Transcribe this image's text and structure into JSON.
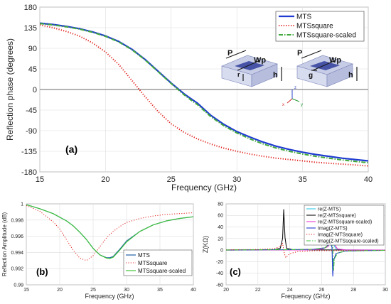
{
  "chart_data": [
    {
      "panel": "(a)",
      "type": "line",
      "xlabel": "Frequency (GHz)",
      "ylabel": "Reflection phase (degrees)",
      "xlim": [
        15,
        40
      ],
      "ylim": [
        -180,
        180
      ],
      "xticks": [
        15,
        20,
        25,
        30,
        35,
        40
      ],
      "yticks": [
        -180,
        -135,
        -90,
        -45,
        0,
        45,
        90,
        135,
        180
      ],
      "grid": true,
      "legend_position": "top-right",
      "series": [
        {
          "name": "MTS",
          "color": "#1f3bd1",
          "dash": "solid",
          "x": [
            15,
            16,
            17,
            18,
            19,
            20,
            21,
            22,
            23,
            24,
            25,
            26,
            26.5,
            27,
            28,
            29,
            30,
            31,
            32,
            33,
            34,
            35,
            36,
            37,
            38,
            39,
            40
          ],
          "y": [
            145,
            142,
            138,
            133,
            126,
            117,
            105,
            88,
            66,
            40,
            14,
            -10,
            -20,
            -30,
            -56,
            -76,
            -92,
            -104,
            -115,
            -124,
            -131,
            -137,
            -142,
            -146,
            -150,
            -153,
            -156
          ]
        },
        {
          "name": "MTSsquare",
          "color": "#e0201b",
          "dash": "dotted",
          "x": [
            15,
            16,
            17,
            18,
            19,
            20,
            21,
            22,
            23,
            24,
            25,
            26,
            27,
            28,
            29,
            30,
            31,
            32,
            33,
            34,
            35,
            36,
            37,
            38,
            39,
            40
          ],
          "y": [
            141,
            135,
            127,
            117,
            102,
            82,
            55,
            20,
            -15,
            -48,
            -75,
            -94,
            -108,
            -119,
            -128,
            -135,
            -141,
            -146,
            -150,
            -153,
            -156,
            -159,
            -161,
            -163,
            -165,
            -167
          ]
        },
        {
          "name": "MTSsquare-scaled",
          "color": "#41a83b",
          "dash": "dashdot",
          "x": [
            15,
            16,
            17,
            18,
            19,
            20,
            21,
            22,
            23,
            24,
            25,
            26,
            26.5,
            27,
            28,
            29,
            30,
            31,
            32,
            33,
            34,
            35,
            36,
            37,
            38,
            39,
            40
          ],
          "y": [
            144,
            141,
            137,
            132,
            125,
            116,
            104,
            87,
            65,
            39,
            13,
            -12,
            -23,
            -33,
            -59,
            -79,
            -95,
            -108,
            -119,
            -128,
            -135,
            -141,
            -146,
            -150,
            -154,
            -157,
            -160
          ]
        }
      ],
      "inset_labels": [
        "P",
        "Wp",
        "r",
        "h",
        "P",
        "Wp",
        "g",
        "h",
        "z",
        "x",
        "y"
      ]
    },
    {
      "panel": "(b)",
      "type": "line",
      "xlabel": "Frequency (GHz)",
      "ylabel": "Reflection Amplitude (dB)",
      "xlim": [
        15,
        40
      ],
      "ylim": [
        0.99,
        1
      ],
      "xticks": [
        15,
        20,
        25,
        30,
        35,
        40
      ],
      "yticks": [
        0.99,
        0.992,
        0.994,
        0.996,
        0.998,
        1
      ],
      "ytick_labels": [
        "0.99",
        "0.992",
        "0.994",
        "0.996",
        "0.998",
        "1"
      ],
      "grid": true,
      "legend_position": "bottom-right",
      "series": [
        {
          "name": "MTS",
          "color": "#1f5fa6",
          "dash": "solid",
          "x": [
            15,
            17,
            19,
            21,
            22,
            23,
            24,
            25,
            26,
            27,
            27.5,
            28,
            29,
            30,
            32,
            34,
            36,
            38,
            40
          ],
          "y": [
            0.9999,
            0.9994,
            0.9988,
            0.9979,
            0.9973,
            0.9965,
            0.9956,
            0.9945,
            0.9937,
            0.99335,
            0.99335,
            0.9935,
            0.9944,
            0.9954,
            0.9966,
            0.9974,
            0.9979,
            0.9982,
            0.9984
          ]
        },
        {
          "name": "MTSsquare",
          "color": "#e0201b",
          "dash": "dotted",
          "x": [
            15,
            17,
            19,
            20,
            21,
            22,
            23,
            24,
            25,
            26,
            27,
            28,
            29,
            30,
            32,
            34,
            36,
            38,
            40
          ],
          "y": [
            0.9998,
            0.9991,
            0.9978,
            0.9969,
            0.9956,
            0.9943,
            0.9933,
            0.993,
            0.9936,
            0.9947,
            0.9958,
            0.9966,
            0.9972,
            0.9977,
            0.9982,
            0.9985,
            0.9987,
            0.9988,
            0.9989
          ]
        },
        {
          "name": "MTSsquare-scaled",
          "color": "#41c43b",
          "dash": "solid",
          "x": [
            15,
            17,
            19,
            21,
            22,
            23,
            24,
            25,
            26,
            27,
            27.5,
            28,
            29,
            30,
            32,
            34,
            36,
            38,
            40
          ],
          "y": [
            0.9999,
            0.9994,
            0.9988,
            0.9979,
            0.9973,
            0.9965,
            0.9956,
            0.9945,
            0.9937,
            0.9933,
            0.99325,
            0.9934,
            0.9943,
            0.9953,
            0.9966,
            0.9974,
            0.9979,
            0.9982,
            0.9984
          ]
        }
      ]
    },
    {
      "panel": "(c)",
      "type": "line",
      "xlabel": "Frequency (GHz)",
      "ylabel": "Z(KΩ)",
      "xlim": [
        20,
        30
      ],
      "ylim": [
        -60,
        80
      ],
      "xticks": [
        20,
        22,
        24,
        26,
        28,
        30
      ],
      "yticks": [
        -60,
        -40,
        -20,
        0,
        20,
        40,
        60,
        80
      ],
      "grid": true,
      "legend_position": "top-right",
      "series": [
        {
          "name": "re(Z-MTS)",
          "color": "#2ec8e6",
          "dash": "solid",
          "x": [
            20,
            25,
            26,
            26.3,
            26.5,
            26.6,
            26.7,
            26.9,
            27.5,
            30
          ],
          "y": [
            0,
            0.3,
            1.5,
            5,
            15,
            18,
            12,
            2,
            0.4,
            0
          ]
        },
        {
          "name": "re(Z-MTSsquare)",
          "color": "#111111",
          "dash": "solid",
          "x": [
            20,
            23,
            23.4,
            23.55,
            23.62,
            23.7,
            23.8,
            24.2,
            30
          ],
          "y": [
            0,
            0.5,
            3,
            20,
            70,
            22,
            3,
            0.5,
            0
          ]
        },
        {
          "name": "re(Z-MTSsquare-scaled)",
          "color": "#e63ad1",
          "dash": "solid",
          "x": [
            20,
            25,
            26,
            26.4,
            26.6,
            26.7,
            26.8,
            27,
            27.5,
            30
          ],
          "y": [
            0,
            0.3,
            1.5,
            6,
            16,
            19,
            10,
            2,
            0.4,
            0
          ]
        },
        {
          "name": "Imag(Z-MTS)",
          "color": "#1f3bd1",
          "dash": "solid",
          "x": [
            20,
            24,
            25.5,
            26.2,
            26.55,
            26.65,
            26.7,
            26.75,
            26.9,
            27.5,
            30
          ],
          "y": [
            0.3,
            0.8,
            1.5,
            4,
            12,
            5,
            -45,
            -18,
            -6,
            -1.5,
            -0.3
          ]
        },
        {
          "name": "Imag(Z-MTSsquare)",
          "color": "#e0201b",
          "dash": "dotted",
          "x": [
            20,
            22,
            23,
            23.4,
            23.55,
            23.65,
            23.75,
            24,
            24.5,
            25.5,
            30
          ],
          "y": [
            0.5,
            1,
            2.5,
            6,
            12,
            -5,
            -13,
            -6,
            -2.5,
            -1,
            -0.3
          ]
        },
        {
          "name": "Imag(Z-MTSsquare-scaled)",
          "color": "#41c43b",
          "dash": "dashdot",
          "x": [
            20,
            24,
            25.5,
            26.2,
            26.6,
            26.7,
            26.75,
            26.8,
            27,
            27.5,
            30
          ],
          "y": [
            0.3,
            0.8,
            1.5,
            4,
            13,
            5,
            -35,
            -15,
            -5,
            -1.5,
            -0.3
          ]
        }
      ]
    }
  ]
}
